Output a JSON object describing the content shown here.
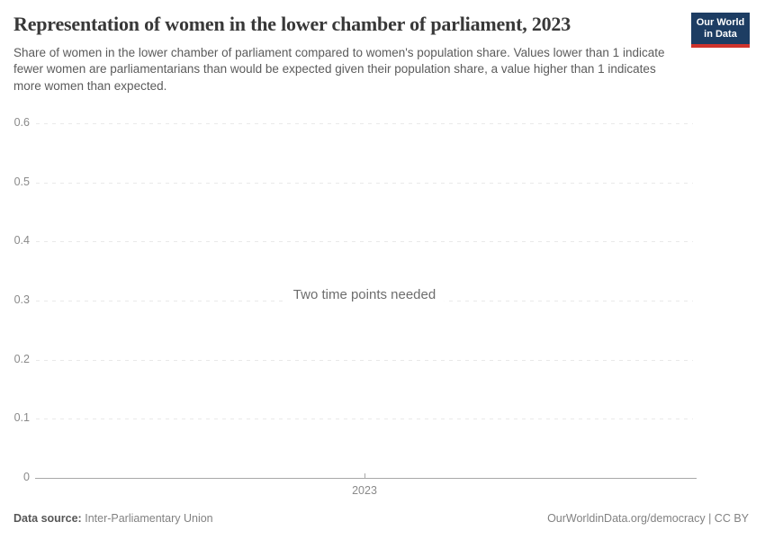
{
  "header": {
    "title": "Representation of women in the lower chamber of parliament, 2023",
    "subtitle": "Share of women in the lower chamber of parliament compared to women's population share. Values lower than 1 indicate fewer women are parliamentarians than would be expected given their population share, a value higher than 1 indicates more women than expected.",
    "logo": {
      "line1": "Our World",
      "line2": "in Data",
      "bg_color": "#1d3d63",
      "accent_color": "#cf332c"
    }
  },
  "chart_data": {
    "type": "line",
    "title": "Representation of women in the lower chamber of parliament, 2023",
    "x": [
      2023
    ],
    "xticks": [
      "2023"
    ],
    "series": [],
    "message": "Two time points needed",
    "ylim": [
      0,
      0.6
    ],
    "yticks": [
      0,
      0.1,
      0.2,
      0.3,
      0.4,
      0.5,
      0.6
    ],
    "ytick_labels": [
      "0",
      "0.1",
      "0.2",
      "0.3",
      "0.4",
      "0.5",
      "0.6"
    ],
    "grid": "horizontal-dashed",
    "legend": "none",
    "colors": {
      "gridline": "#e9e9e9",
      "axis": "#a8a8a8",
      "tick_label": "#8a8a8a",
      "message_text": "#6d6d6d"
    }
  },
  "footer": {
    "data_source_label": "Data source:",
    "data_source_value": "Inter-Parliamentary Union",
    "attribution": "OurWorldinData.org/democracy | CC BY"
  }
}
